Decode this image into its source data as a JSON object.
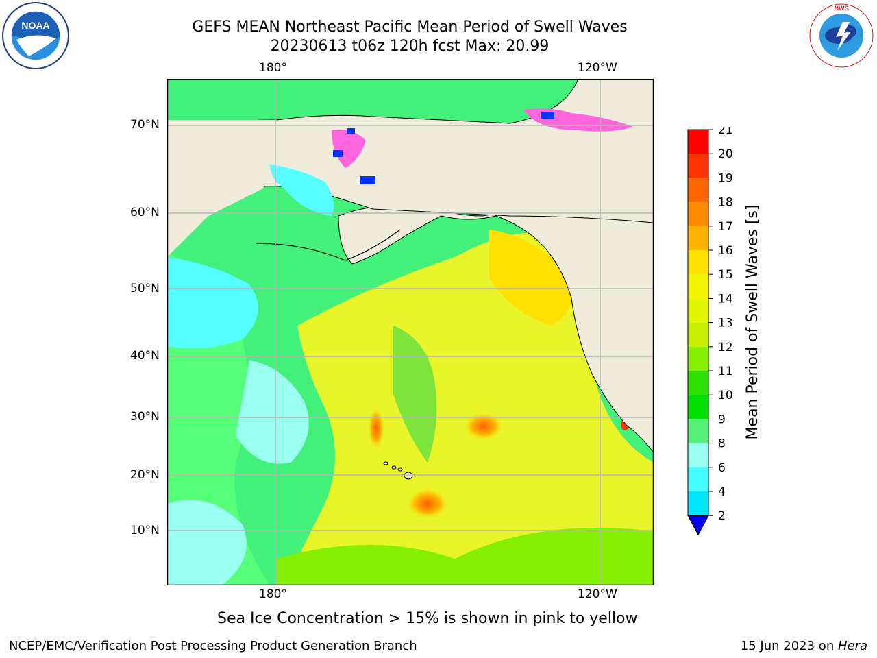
{
  "header": {
    "title": "GEFS MEAN Northeast Pacific Mean Period of Swell Waves",
    "subtitle": "20230613 t06z 120h fcst   Max: 20.99"
  },
  "logos": {
    "noaa": {
      "icon": "noaa-logo",
      "wordmark": "NOAA"
    },
    "nws": {
      "icon": "nws-logo",
      "text": "NATIONAL WEATHER SERVICE"
    }
  },
  "map": {
    "lon_labels": [
      "180°",
      "120°W"
    ],
    "lat_labels": [
      "70°N",
      "60°N",
      "50°N",
      "40°N",
      "30°N",
      "20°N",
      "10°N"
    ],
    "land_color": "#efecdc",
    "grid_color": "#b4b4b4"
  },
  "colorbar": {
    "label": "Mean Period of Swell Waves [s]",
    "ticks": [
      "21",
      "20",
      "19",
      "18",
      "17",
      "16",
      "15",
      "14",
      "13",
      "12",
      "11",
      "10",
      "9",
      "8",
      "6",
      "4",
      "2"
    ],
    "colors": [
      "#ff0000",
      "#ff3300",
      "#ff6600",
      "#ff8c00",
      "#ffb300",
      "#ffe000",
      "#f4f400",
      "#e0f500",
      "#c8f000",
      "#86ee00",
      "#2de000",
      "#00e000",
      "#55f07a",
      "#99ffee",
      "#44ffff",
      "#00e6ff",
      "#00a8ff",
      "#0055ff"
    ],
    "underflow_color": "#0000f0"
  },
  "notes": {
    "sea_ice": "Sea Ice Concentration > 15% is shown in pink to yellow"
  },
  "footer": {
    "left": "NCEP/EMC/Verification Post Processing Product Generation Branch",
    "date": "15 Jun 2023 on ",
    "machine": "Hera"
  }
}
